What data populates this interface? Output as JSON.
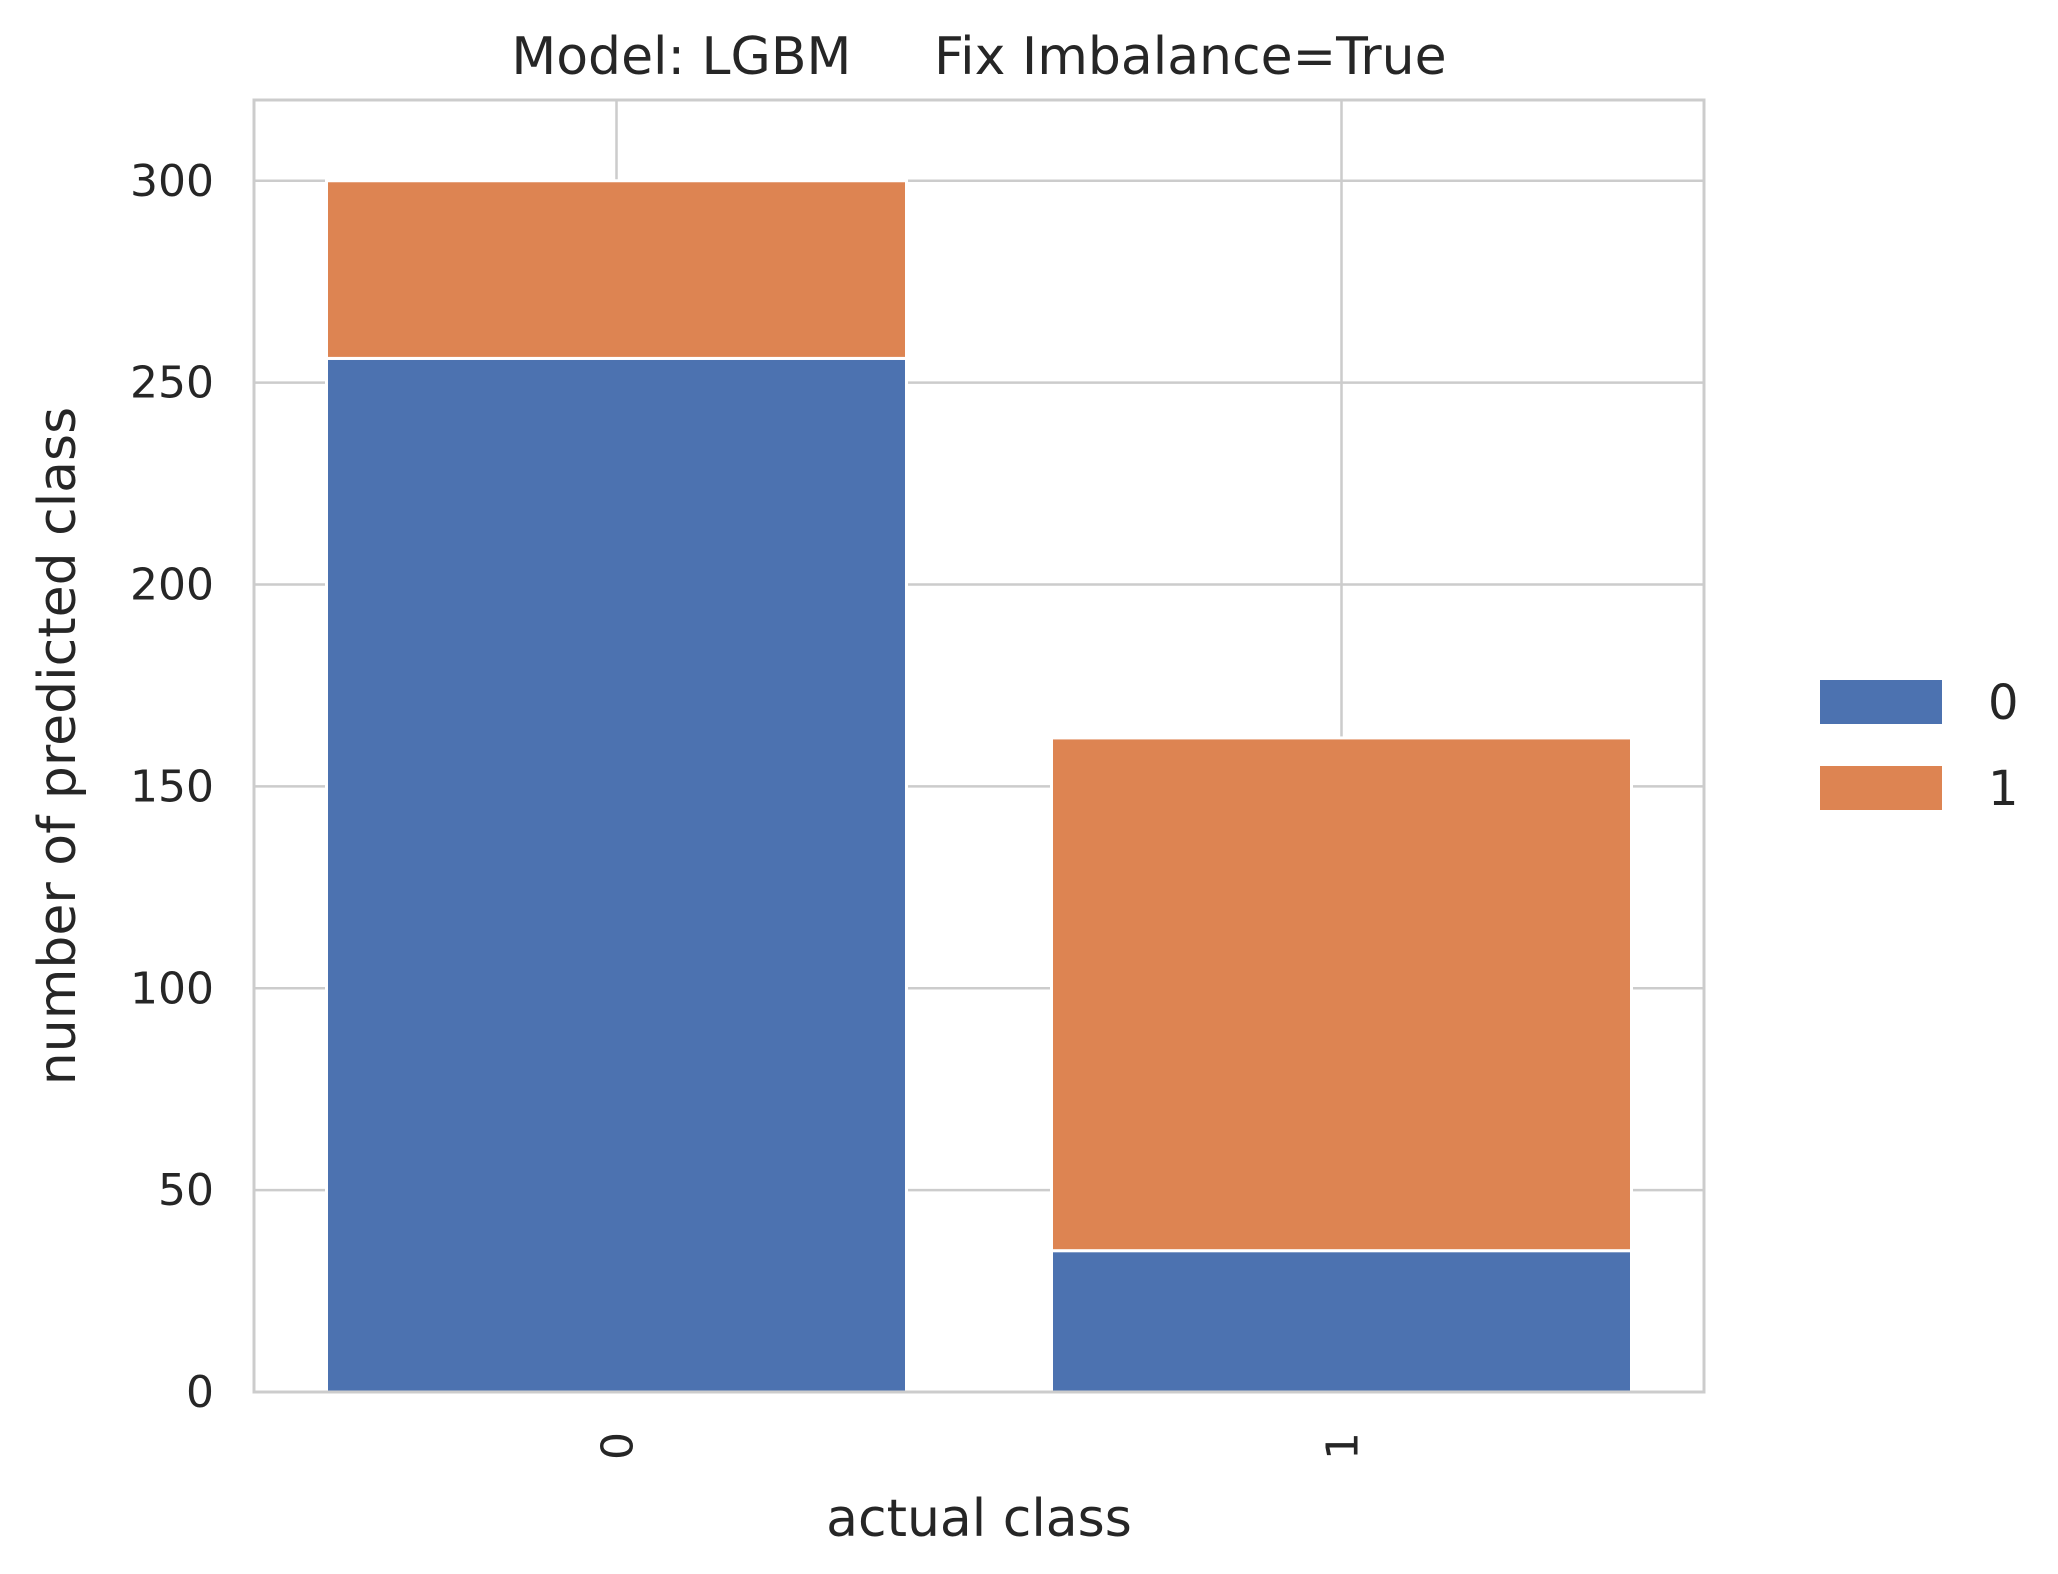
{
  "chart_data": {
    "type": "bar",
    "stacked": true,
    "title": "Model: LGBM     Fix Imbalance=True",
    "xlabel": "actual class",
    "ylabel": "number of predicted class",
    "categories": [
      "0",
      "1"
    ],
    "series": [
      {
        "name": "0",
        "values": [
          256,
          35
        ],
        "color": "#4c72b0"
      },
      {
        "name": "1",
        "values": [
          44,
          127
        ],
        "color": "#dd8452"
      }
    ],
    "ylim": [
      0,
      320
    ],
    "yticks": [
      0,
      50,
      100,
      150,
      200,
      250,
      300
    ],
    "ytick_labels": [
      "0",
      "50",
      "100",
      "150",
      "200",
      "250",
      "300"
    ],
    "xtick_rotation": 90,
    "grid": true,
    "legend_position": "right"
  }
}
